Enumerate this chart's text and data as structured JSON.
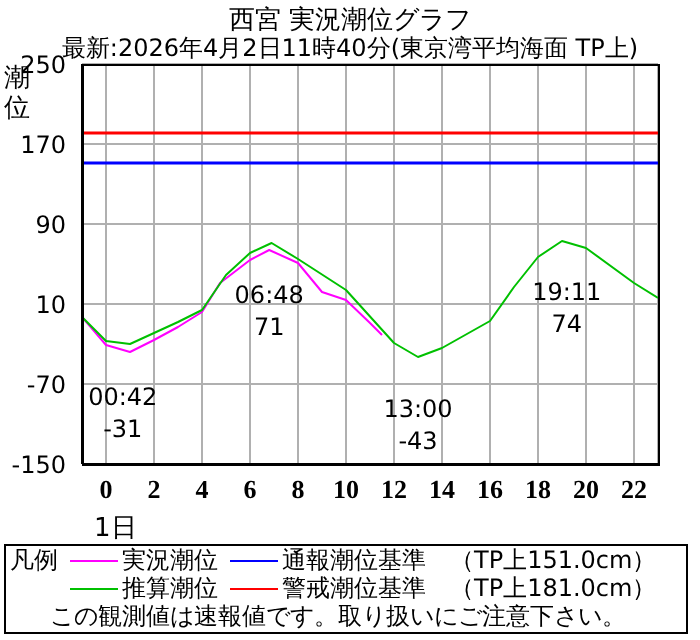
{
  "chart_data": {
    "type": "line",
    "title": "西宮 実況潮位グラフ",
    "subtitle": "最新:2026年4月2日11時40分(東京湾平均海面 TP上)",
    "xlabel": "1日",
    "ylabel": "潮位",
    "legend_title": "凡例",
    "legend": "bottom",
    "grid": true,
    "marker": "none",
    "line_style": "solid",
    "xlim": [
      -1,
      23
    ],
    "xticks": [
      0,
      2,
      4,
      6,
      8,
      10,
      12,
      14,
      16,
      18,
      20,
      22
    ],
    "ylim": [
      -150,
      250
    ],
    "yticks": [
      -150,
      -70,
      10,
      90,
      170,
      250
    ],
    "series": [
      {
        "name": "実況潮位",
        "color": "#ff00ff",
        "x": [
          -1,
          0,
          1,
          2,
          3,
          4,
          4.75,
          6,
          6.8,
          8,
          9,
          10,
          11,
          11.5
        ],
        "values": [
          -3,
          -31,
          -38,
          -26,
          -13,
          2,
          31,
          54,
          64,
          51,
          22,
          14,
          -9,
          -21
        ]
      },
      {
        "name": "推算潮位",
        "color": "#00c000",
        "x": [
          -1,
          0,
          1,
          2,
          3,
          4,
          5,
          6,
          6.9,
          8,
          10,
          12,
          13,
          14,
          16,
          17,
          18,
          19,
          20,
          22,
          23
        ],
        "values": [
          -3,
          -27,
          -30,
          -19,
          -8,
          4,
          39,
          61,
          71,
          55,
          24,
          -29,
          -43,
          -34,
          -7,
          27,
          57,
          73,
          66,
          31,
          16
        ]
      }
    ],
    "ref_lines": [
      {
        "axis": "y",
        "value": 151,
        "label": "通報潮位基準",
        "color": "#0000ff"
      },
      {
        "axis": "y",
        "value": 181,
        "label": "警戒潮位基準",
        "color": "#ff0000"
      }
    ],
    "annotations": [
      {
        "text": "00:42\n-31",
        "x": 0.7,
        "y": -31
      },
      {
        "text": "06:48\n71",
        "x": 6.8,
        "y": 71
      },
      {
        "text": "13:00\n-43",
        "x": 13,
        "y": -43
      },
      {
        "text": "19:11\n74",
        "x": 19.2,
        "y": 74
      },
      "（TP上151.0cm）",
      "（TP上181.0cm）",
      "この観測値は速報値です。取り扱いにご注意下さい。"
    ]
  }
}
